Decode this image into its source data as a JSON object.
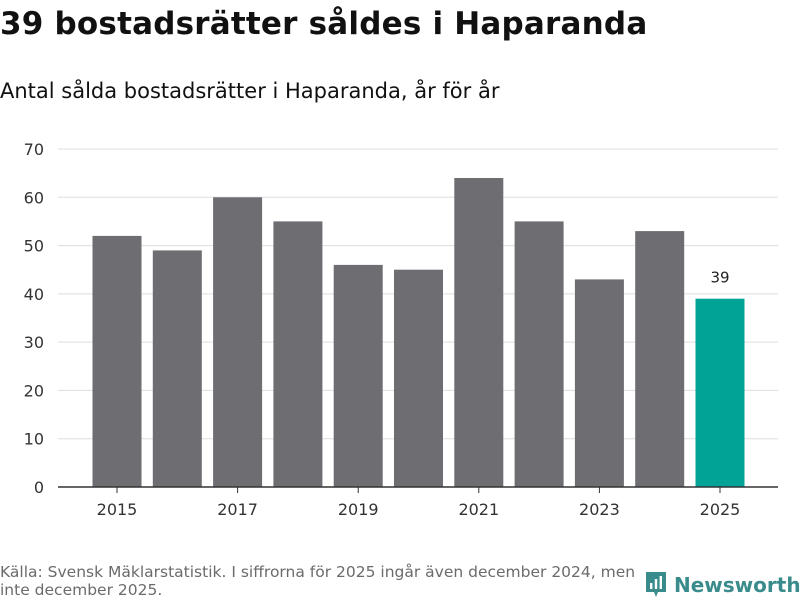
{
  "header": {
    "title": "39 bostadsrätter såldes i Haparanda",
    "subtitle": "Antal sålda bostadsrätter i Haparanda, år för år"
  },
  "footer": {
    "source": "Källa: Svensk Mäklarstatistik. I siffrorna för 2025 ingår även december 2024, men inte december 2025."
  },
  "brand": {
    "name": "Newsworthy",
    "icon": "newsworthy-logo-icon"
  },
  "colors": {
    "bar": "#6e6d72",
    "highlight": "#00a396",
    "grid": "#dddddd",
    "axis": "#333333"
  },
  "chart_data": {
    "type": "bar",
    "title": "Antal sålda bostadsrätter i Haparanda, år för år",
    "categories": [
      "2015",
      "2016",
      "2017",
      "2018",
      "2019",
      "2020",
      "2021",
      "2022",
      "2023",
      "2024",
      "2025"
    ],
    "values": [
      52,
      49,
      60,
      55,
      46,
      45,
      64,
      55,
      43,
      53,
      39
    ],
    "xticks": [
      "2015",
      "2017",
      "2019",
      "2021",
      "2023",
      "2025"
    ],
    "yticks": [
      0,
      10,
      20,
      30,
      40,
      50,
      60,
      70
    ],
    "ylim": [
      0,
      70
    ],
    "xlabel": "",
    "ylabel": "",
    "grid": true,
    "highlight_index": 10,
    "data_labels": [
      {
        "index": 10,
        "text": "39"
      }
    ]
  }
}
